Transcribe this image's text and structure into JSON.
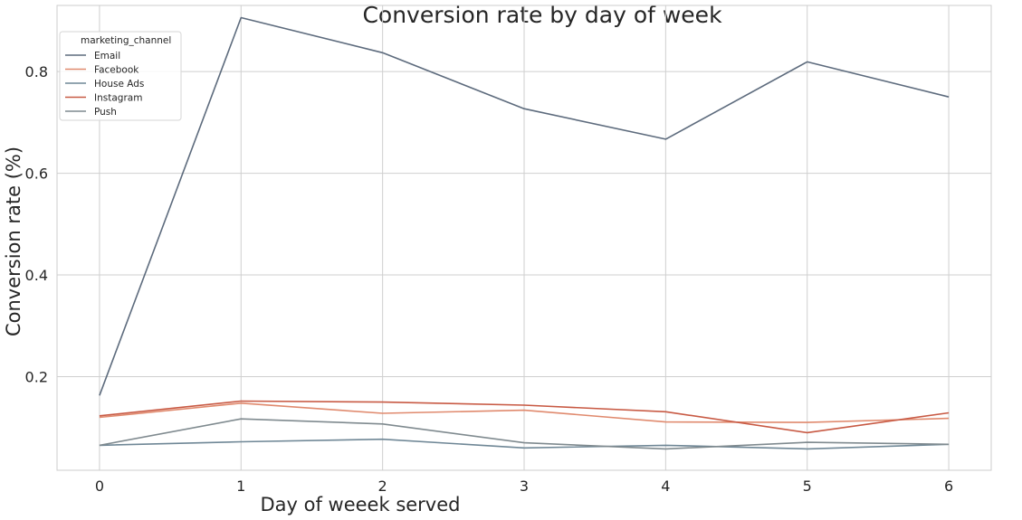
{
  "chart_data": {
    "type": "line",
    "title": "Conversion rate by day of week",
    "xlabel": "Day of weeek served",
    "ylabel": "Conversion rate (%)",
    "x": [
      0,
      1,
      2,
      3,
      4,
      5,
      6
    ],
    "xticks": [
      "0",
      "1",
      "2",
      "3",
      "4",
      "5",
      "6"
    ],
    "yticks": [
      "0.2",
      "0.4",
      "0.6",
      "0.8"
    ],
    "xlim": [
      -0.3,
      6.3
    ],
    "ylim": [
      0.016,
      0.93
    ],
    "grid": true,
    "legend": {
      "title": "marketing_channel",
      "placement": "top-left"
    },
    "series": [
      {
        "name": "Email",
        "color": "#5d6b7d",
        "values": [
          0.163,
          0.906,
          0.837,
          0.727,
          0.667,
          0.819,
          0.75
        ]
      },
      {
        "name": "Facebook",
        "color": "#e08a6e",
        "values": [
          0.12,
          0.148,
          0.128,
          0.134,
          0.111,
          0.11,
          0.118
        ]
      },
      {
        "name": "House Ads",
        "color": "#6f8796",
        "values": [
          0.065,
          0.072,
          0.077,
          0.06,
          0.065,
          0.058,
          0.067
        ]
      },
      {
        "name": "Instagram",
        "color": "#c85a44",
        "values": [
          0.123,
          0.152,
          0.15,
          0.144,
          0.131,
          0.09,
          0.129
        ]
      },
      {
        "name": "Push",
        "color": "#7f8a8f",
        "values": [
          0.065,
          0.117,
          0.107,
          0.07,
          0.058,
          0.071,
          0.067
        ]
      }
    ]
  }
}
